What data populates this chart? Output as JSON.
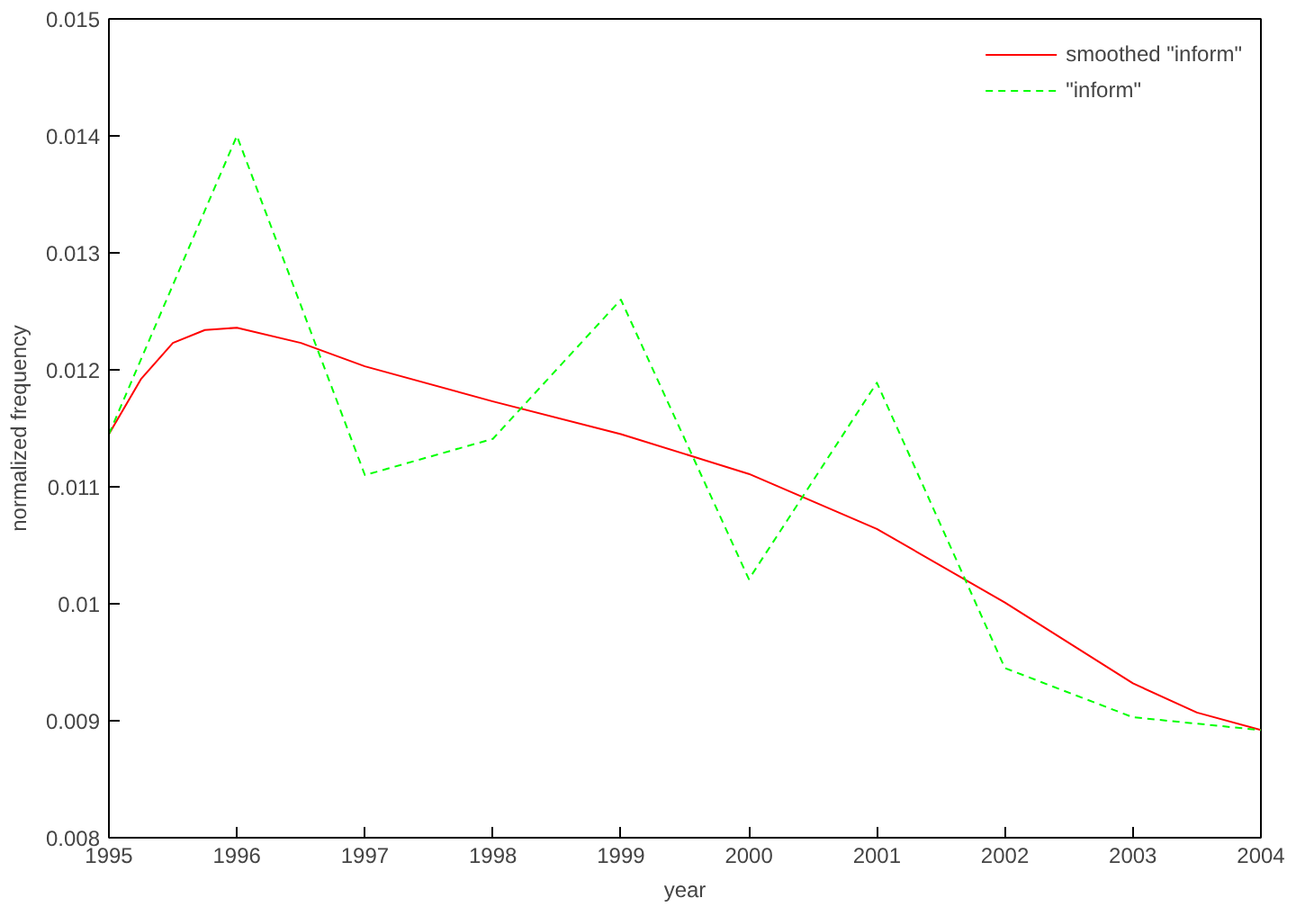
{
  "chart_data": {
    "type": "line",
    "xlabel": "year",
    "ylabel": "normalized frequency",
    "xlim": [
      1995,
      2004
    ],
    "xticks": [
      1995,
      1996,
      1997,
      1998,
      1999,
      2000,
      2001,
      2002,
      2003,
      2004
    ],
    "ylim": [
      0.008,
      0.015
    ],
    "yticks": [
      0.008,
      0.009,
      0.01,
      0.011,
      0.012,
      0.013,
      0.014,
      0.015
    ],
    "grid": false,
    "legend": "top right",
    "marker": "none",
    "series": [
      {
        "name": "smoothed \"inform\"",
        "color": "#ff0000",
        "line_style": "solid",
        "x": [
          1995,
          1995.25,
          1995.5,
          1995.75,
          1996,
          1996.5,
          1997,
          1998,
          1999,
          2000,
          2001,
          2002,
          2003,
          2003.5,
          2004
        ],
        "values": [
          0.01145,
          0.01192,
          0.01223,
          0.01234,
          0.01236,
          0.01223,
          0.01203,
          0.01173,
          0.01145,
          0.01111,
          0.01064,
          0.01001,
          0.00932,
          0.00907,
          0.00892
        ]
      },
      {
        "name": "\"inform\"",
        "color": "#00ff00",
        "line_style": "dashed",
        "x": [
          1995,
          1996,
          1997,
          1998,
          1999,
          2000,
          2001,
          2002,
          2003,
          2004
        ],
        "values": [
          0.01145,
          0.014,
          0.0111,
          0.01141,
          0.0126,
          0.01021,
          0.01189,
          0.00945,
          0.00903,
          0.00892
        ]
      }
    ]
  }
}
